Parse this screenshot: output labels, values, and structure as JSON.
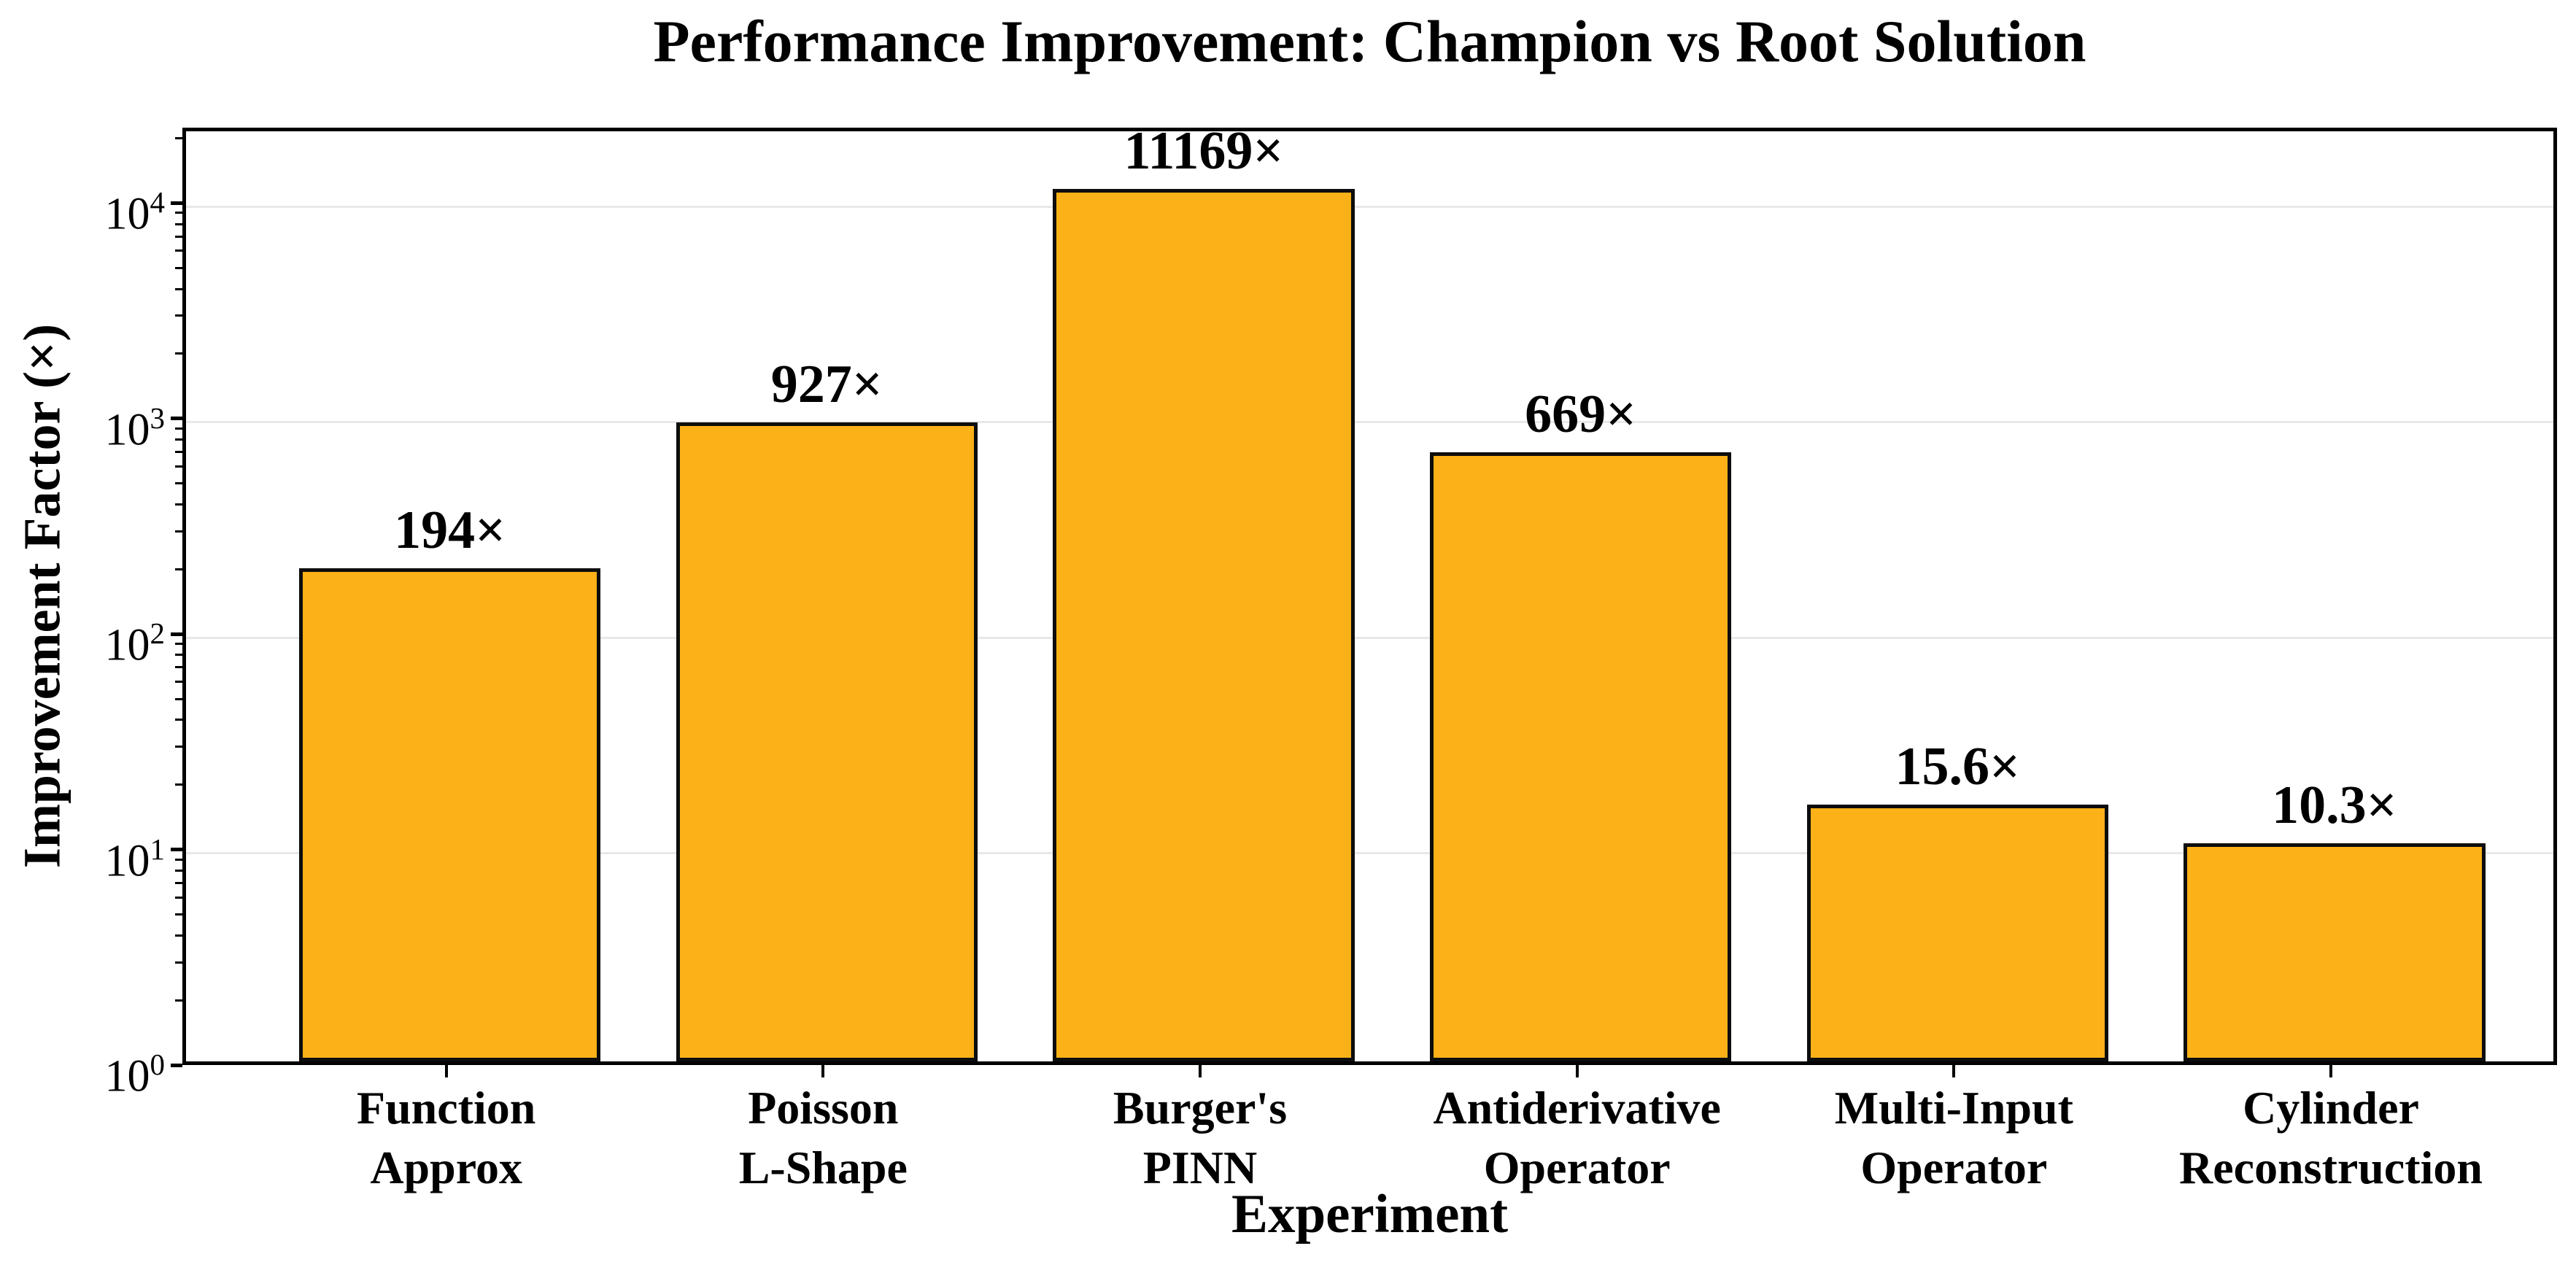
{
  "chart_data": {
    "type": "bar",
    "title": "Performance Improvement: Champion vs Root Solution",
    "xlabel": "Experiment",
    "ylabel": "Improvement Factor (×)",
    "categories": [
      [
        "Function",
        "Approx"
      ],
      [
        "Poisson",
        "L-Shape"
      ],
      [
        "Burger's",
        "PINN"
      ],
      [
        "Antiderivative",
        "Operator"
      ],
      [
        "Multi-Input",
        "Operator"
      ],
      [
        "Cylinder",
        "Reconstruction"
      ]
    ],
    "values": [
      194,
      927,
      11169,
      669,
      15.6,
      10.3
    ],
    "bar_labels": [
      "194×",
      "927×",
      "11169×",
      "669×",
      "15.6×",
      "10.3×"
    ],
    "yscale": "log",
    "ylim": [
      1,
      22400
    ],
    "ytick_base": "10",
    "ytick_exponents": [
      0,
      1,
      2,
      3,
      4
    ],
    "grid": "horizontal-major-only",
    "legend": "none",
    "bar_color": "#FBB117",
    "bar_edge_color": "#0d0d0d",
    "grid_color": "#e8e8e8",
    "axis_color": "#000000"
  }
}
